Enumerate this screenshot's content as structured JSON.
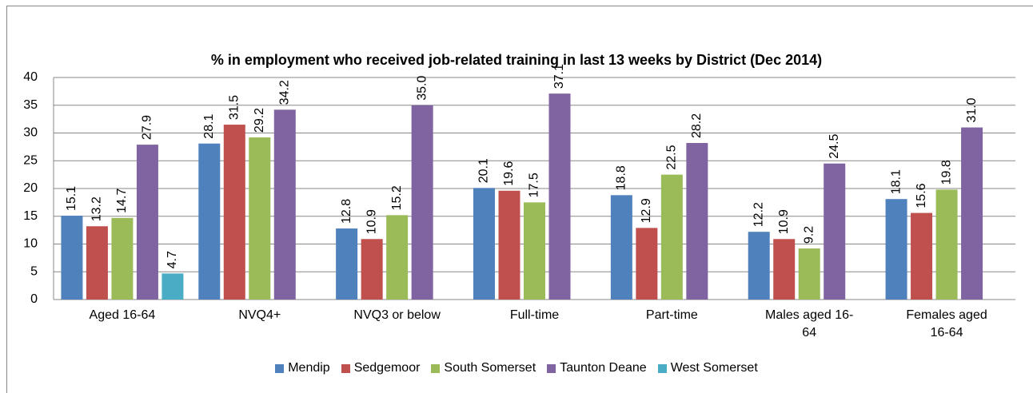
{
  "chart_data": {
    "type": "bar",
    "title": "% in employment who received job-related training in last 13 weeks by District (Dec 2014)",
    "categories": [
      "Aged 16-64",
      "NVQ4+",
      "NVQ3 or below",
      "Full-time",
      "Part-time",
      "Males aged 16-64",
      "Females aged 16-64"
    ],
    "series": [
      {
        "name": "Mendip",
        "color": "#4f81bd",
        "values": [
          15.1,
          28.1,
          12.8,
          20.1,
          18.8,
          12.2,
          18.1
        ],
        "value_labels": [
          "15.1",
          "28.1",
          "12.8",
          "20.1",
          "18.8",
          "12.2",
          "18.1"
        ]
      },
      {
        "name": "Sedgemoor",
        "color": "#c0504d",
        "values": [
          13.2,
          31.5,
          10.9,
          19.6,
          12.9,
          10.9,
          15.6
        ],
        "value_labels": [
          "13.2",
          "31.5",
          "10.9",
          "19.6",
          "12.9",
          "10.9",
          "15.6"
        ]
      },
      {
        "name": "South Somerset",
        "color": "#9bbb59",
        "values": [
          14.7,
          29.2,
          15.2,
          17.5,
          22.5,
          9.2,
          19.8
        ],
        "value_labels": [
          "14.7",
          "29.2",
          "15.2",
          "17.5",
          "22.5",
          "9.2",
          "19.8"
        ]
      },
      {
        "name": "Taunton Deane",
        "color": "#8064a2",
        "values": [
          27.9,
          34.2,
          35,
          37.1,
          28.2,
          24.5,
          31
        ],
        "value_labels": [
          "27.9",
          "34.2",
          "35.0",
          "37.1",
          "28.2",
          "24.5",
          "31.0"
        ]
      },
      {
        "name": "West Somerset",
        "color": "#4bacc6",
        "values": [
          4.7,
          null,
          null,
          null,
          null,
          null,
          null
        ],
        "value_labels": [
          "4.7",
          null,
          null,
          null,
          null,
          null,
          null
        ]
      }
    ],
    "ylim": [
      0,
      40
    ],
    "yticks": [
      0,
      5,
      10,
      15,
      20,
      25,
      30,
      35,
      40
    ],
    "grid": true,
    "legend": "bottom"
  }
}
